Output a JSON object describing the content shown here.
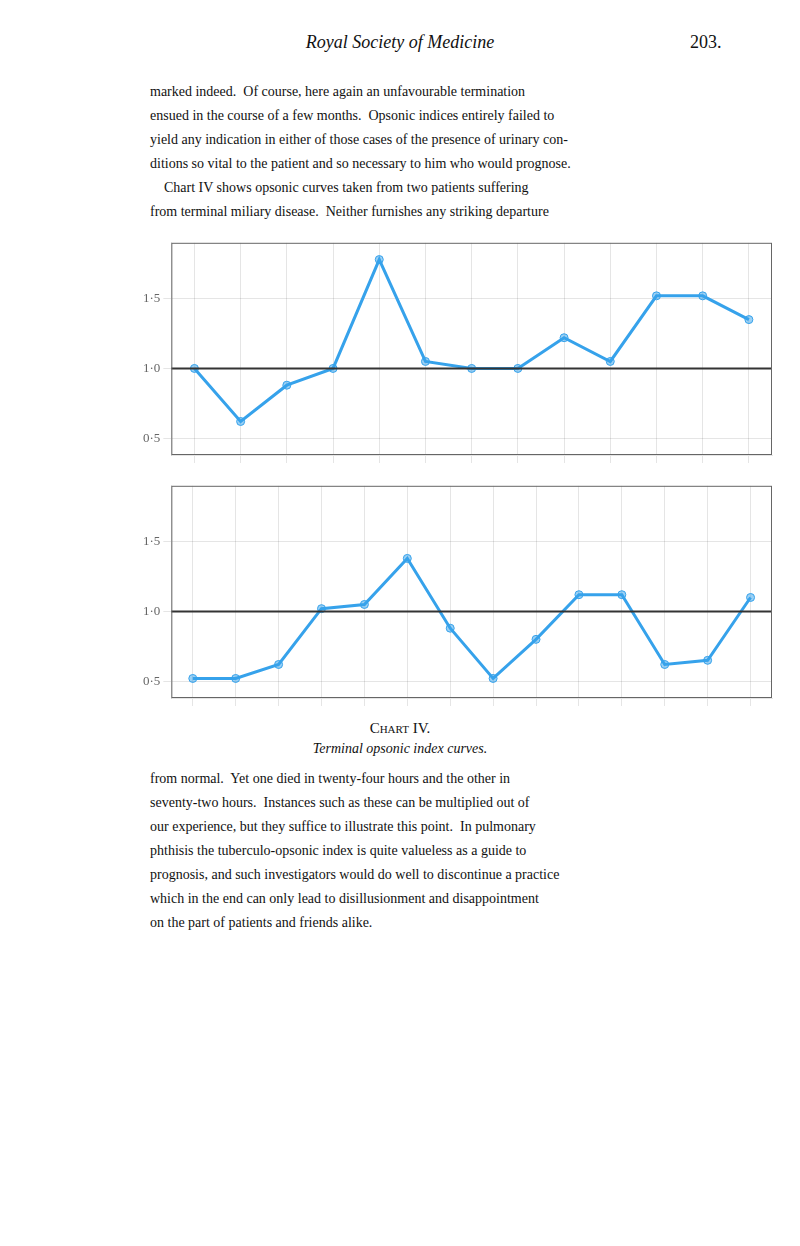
{
  "header": "Royal Society of Medicine",
  "page_number": "203.",
  "text_above": [
    "marked indeed.  Of course, here again an unfavourable termination",
    "ensued in the course of a few months.  Opsonic indices entirely failed to",
    "yield any indication in either of those cases of the presence of urinary con-",
    "ditions so vital to the patient and so necessary to him who would prognose.",
    "    Chart IV shows opsonic curves taken from two patients suffering",
    "from terminal miliary disease.  Neither furnishes any striking departure"
  ],
  "title": "Chart IV.",
  "subtitle": "Terminal opsonic index curves.",
  "text_below": [
    "from normal.  Yet one died in twenty-four hours and the other in",
    "seventy-two hours.  Instances such as these can be multiplied out of",
    "our experience, but they suffice to illustrate this point.  In pulmonary",
    "phthisis the tuberculo-opsonic index is quite valueless as a guide to",
    "prognosis, and such investigators would do well to discontinue a practice",
    "which in the end can only lead to disillusionment and disappointment",
    "on the part of patients and friends alike."
  ],
  "chart_data": [
    {
      "type": "line",
      "categories": [
        null,
        null,
        null,
        null,
        null,
        null,
        null,
        null,
        null,
        null,
        null,
        null,
        null
      ],
      "values": [
        1.0,
        0.62,
        0.88,
        1.0,
        1.78,
        1.05,
        1.0,
        1.0,
        1.22,
        1.05,
        1.52,
        1.52,
        1.35
      ],
      "ylim": [
        0.38,
        1.9
      ],
      "yticks": [
        {
          "value": 0.5,
          "label": "0·5"
        },
        {
          "value": 1.0,
          "label": "1·0"
        },
        {
          "value": 1.5,
          "label": "1·5"
        }
      ],
      "reference_line": 1.0,
      "grid": true,
      "tick_labels": "y"
    },
    {
      "type": "line",
      "categories": [
        null,
        null,
        null,
        null,
        null,
        null,
        null,
        null,
        null,
        null,
        null,
        null,
        null,
        null
      ],
      "values": [
        0.52,
        0.52,
        0.62,
        1.02,
        1.05,
        1.38,
        0.88,
        0.52,
        0.8,
        1.12,
        1.12,
        0.62,
        0.65,
        1.1
      ],
      "ylim": [
        0.38,
        1.9
      ],
      "yticks": [
        {
          "value": 0.5,
          "label": "0·5"
        },
        {
          "value": 1.0,
          "label": "1·0"
        },
        {
          "value": 1.5,
          "label": "1·5"
        }
      ],
      "reference_line": 1.0,
      "grid": true,
      "tick_labels": "y"
    }
  ]
}
